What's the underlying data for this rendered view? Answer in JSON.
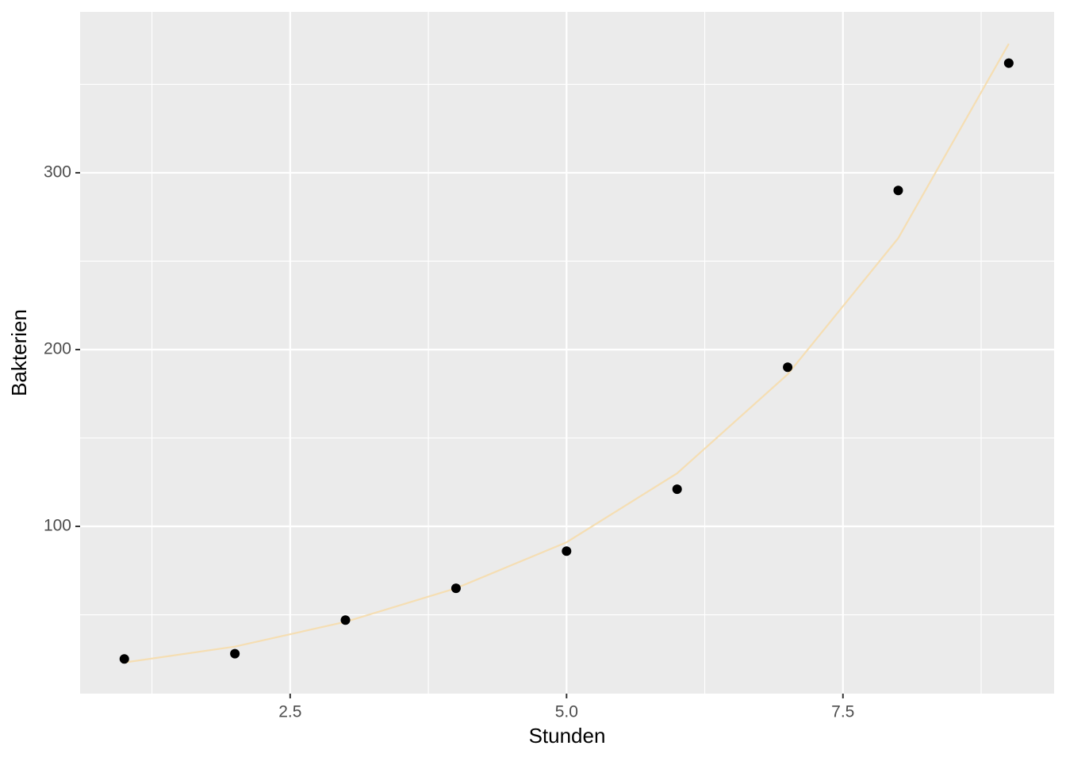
{
  "chart_data": {
    "type": "scatter",
    "x_label": "Stunden",
    "y_label": "Bakterien",
    "x": [
      1,
      2,
      3,
      4,
      5,
      6,
      7,
      8,
      9
    ],
    "series": [
      {
        "type": "scatter",
        "color": "#000000",
        "values": [
          25,
          28,
          47,
          65,
          86,
          121,
          190,
          290,
          362
        ]
      },
      {
        "type": "line",
        "color": "#f5deb3",
        "values": [
          23,
          32,
          46,
          65,
          91,
          130,
          186,
          263,
          373
        ]
      }
    ],
    "xlim": [
      0.6,
      9.41
    ],
    "ylim": [
      5.4,
      391
    ],
    "xticks": [
      {
        "value": 2.5,
        "label": "2.5"
      },
      {
        "value": 5,
        "label": "5.0"
      },
      {
        "value": 7.5,
        "label": "7.5"
      }
    ],
    "yticks": [
      100,
      200,
      300
    ],
    "xminor": [
      1.25,
      3.75,
      6.25,
      8.75
    ],
    "yminor": [
      50,
      150,
      250,
      350
    ],
    "grid": true
  }
}
